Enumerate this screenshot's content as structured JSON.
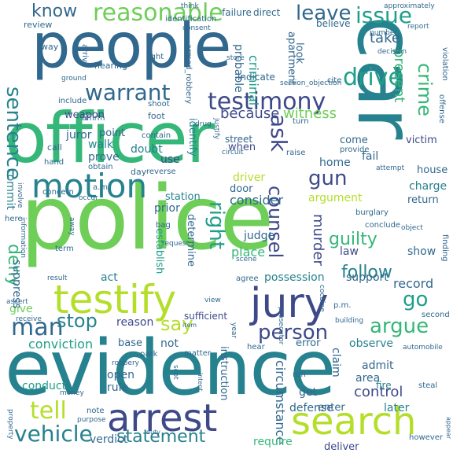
{
  "palette": [
    "#440154",
    "#482878",
    "#3e4989",
    "#31688e",
    "#26828e",
    "#1f9e89",
    "#35b779",
    "#6ece58",
    "#b5de2b",
    "#fde725"
  ],
  "words": [
    {
      "text": "police",
      "color": "#6ece58"
    },
    {
      "text": "evidence",
      "color": "#26828e"
    },
    {
      "text": "officer",
      "color": "#35b779"
    },
    {
      "text": "people",
      "color": "#31688e"
    },
    {
      "text": "car",
      "color": "#26828e"
    },
    {
      "text": "arrest",
      "color": "#3e4989"
    },
    {
      "text": "search",
      "color": "#b5de2b"
    },
    {
      "text": "jury",
      "color": "#3e4989"
    },
    {
      "text": "testify",
      "color": "#b5de2b"
    },
    {
      "text": "motion",
      "color": "#26828e"
    },
    {
      "text": "testimony",
      "color": "#3e4989"
    },
    {
      "text": "reasonable",
      "color": "#6ece58"
    },
    {
      "text": "warrant",
      "color": "#31688e"
    },
    {
      "text": "issue",
      "color": "#1f9e89"
    },
    {
      "text": "leave",
      "color": "#31688e"
    },
    {
      "text": "drive",
      "color": "#1f9e89"
    },
    {
      "text": "know",
      "color": "#31688e"
    },
    {
      "text": "sentence",
      "color": "#26828e"
    },
    {
      "text": "tell",
      "color": "#b5de2b"
    },
    {
      "text": "vehicle",
      "color": "#26828e"
    },
    {
      "text": "man",
      "color": "#31688e"
    },
    {
      "text": "stop",
      "color": "#26828e"
    },
    {
      "text": "say",
      "color": "#b5de2b"
    },
    {
      "text": "person",
      "color": "#3e4989"
    },
    {
      "text": "argue",
      "color": "#35b779"
    },
    {
      "text": "go",
      "color": "#1f9e89"
    },
    {
      "text": "gun",
      "color": "#3e4989"
    },
    {
      "text": "ask",
      "color": "#3e4989"
    },
    {
      "text": "crime",
      "color": "#35b779"
    },
    {
      "text": "right",
      "color": "#1f9e89"
    },
    {
      "text": "counsel",
      "color": "#3e4989"
    },
    {
      "text": "deny",
      "color": "#35b779"
    },
    {
      "text": "because",
      "color": "#3e4989"
    },
    {
      "text": "witness",
      "color": "#6ece58"
    },
    {
      "text": "follow",
      "color": "#26828e"
    },
    {
      "text": "guilty",
      "color": "#35b779"
    },
    {
      "text": "take",
      "color": "#31688e"
    },
    {
      "text": "present",
      "color": "#35b779"
    },
    {
      "text": "record",
      "color": "#31688e"
    },
    {
      "text": "statement",
      "color": "#26828e"
    },
    {
      "text": "conviction",
      "color": "#1f9e89"
    },
    {
      "text": "give",
      "color": "#6ece58"
    },
    {
      "text": "possession",
      "color": "#26828e"
    },
    {
      "text": "support",
      "color": "#31688e"
    },
    {
      "text": "murder",
      "color": "#3e4989"
    },
    {
      "text": "circumstance",
      "color": "#31688e"
    },
    {
      "text": "defense",
      "color": "#31688e"
    },
    {
      "text": "control",
      "color": "#3e4989"
    },
    {
      "text": "verdict",
      "color": "#31688e"
    },
    {
      "text": "require",
      "color": "#35b779"
    },
    {
      "text": "deliver",
      "color": "#3e4989"
    },
    {
      "text": "juror",
      "color": "#31688e"
    },
    {
      "text": "weapon",
      "color": "#3e4989"
    },
    {
      "text": "apartment",
      "color": "#31688e"
    },
    {
      "text": "criminal",
      "color": "#1f9e89"
    },
    {
      "text": "probable",
      "color": "#31688e"
    },
    {
      "text": "judge",
      "color": "#31688e"
    },
    {
      "text": "place",
      "color": "#35b779"
    },
    {
      "text": "consider",
      "color": "#31688e"
    },
    {
      "text": "argument",
      "color": "#b5de2b"
    },
    {
      "text": "law",
      "color": "#3e4989"
    },
    {
      "text": "show",
      "color": "#31688e"
    },
    {
      "text": "observe",
      "color": "#26828e"
    },
    {
      "text": "error",
      "color": "#31688e"
    },
    {
      "text": "claim",
      "color": "#31688e"
    },
    {
      "text": "admit",
      "color": "#31688e"
    },
    {
      "text": "area",
      "color": "#31688e"
    },
    {
      "text": "fire",
      "color": "#26828e"
    },
    {
      "text": "get",
      "color": "#31688e"
    },
    {
      "text": "enter",
      "color": "#31688e"
    },
    {
      "text": "later",
      "color": "#26828e"
    },
    {
      "text": "charge",
      "color": "#26828e"
    },
    {
      "text": "return",
      "color": "#31688e"
    },
    {
      "text": "house",
      "color": "#31688e"
    },
    {
      "text": "victim",
      "color": "#3e4989"
    },
    {
      "text": "fail",
      "color": "#31688e"
    },
    {
      "text": "come",
      "color": "#31688e"
    },
    {
      "text": "home",
      "color": "#31688e"
    },
    {
      "text": "when",
      "color": "#3e4989"
    },
    {
      "text": "walk",
      "color": "#26828e"
    },
    {
      "text": "prove",
      "color": "#31688e"
    },
    {
      "text": "use",
      "color": "#3e4989"
    },
    {
      "text": "doubt",
      "color": "#26828e"
    },
    {
      "text": "point",
      "color": "#31688e"
    },
    {
      "text": "identify",
      "color": "#26828e"
    },
    {
      "text": "station",
      "color": "#26828e"
    },
    {
      "text": "door",
      "color": "#31688e"
    },
    {
      "text": "driver",
      "color": "#b5de2b"
    },
    {
      "text": "prior",
      "color": "#31688e"
    },
    {
      "text": "establish",
      "color": "#1f9e89"
    },
    {
      "text": "determine",
      "color": "#31688e"
    },
    {
      "text": "act",
      "color": "#26828e"
    },
    {
      "text": "rule",
      "color": "#31688e"
    },
    {
      "text": "open",
      "color": "#31688e"
    },
    {
      "text": "base",
      "color": "#31688e"
    },
    {
      "text": "conduct",
      "color": "#1f9e89"
    },
    {
      "text": "suppress",
      "color": "#31688e"
    },
    {
      "text": "commit",
      "color": "#26828e"
    },
    {
      "text": "instruction",
      "color": "#31688e"
    },
    {
      "text": "reason",
      "color": "#3e4989"
    },
    {
      "text": "not",
      "color": "#31688e"
    },
    {
      "text": "sufficient",
      "color": "#3e4989"
    },
    {
      "text": "street",
      "color": "#31688e"
    },
    {
      "text": "indicate",
      "color": "#31688e"
    },
    {
      "text": "look",
      "color": "#31688e"
    },
    {
      "text": "believe",
      "color": "#31688e"
    },
    {
      "text": "failure",
      "color": "#31688e"
    },
    {
      "text": "direct",
      "color": "#31688e"
    },
    {
      "text": "review",
      "color": "#31688e"
    },
    {
      "text": "way",
      "color": "#31688e"
    },
    {
      "text": "arrive",
      "color": "#31688e"
    },
    {
      "text": "hearing",
      "color": "#31688e"
    },
    {
      "text": "include",
      "color": "#31688e"
    },
    {
      "text": "affirm",
      "color": "#31688e"
    },
    {
      "text": "call",
      "color": "#31688e"
    },
    {
      "text": "hand",
      "color": "#31688e"
    },
    {
      "text": "concern",
      "color": "#31688e"
    },
    {
      "text": "foot",
      "color": "#31688e"
    },
    {
      "text": "light",
      "color": "#31688e"
    },
    {
      "text": "shoot",
      "color": "#31688e"
    },
    {
      "text": "contain",
      "color": "#31688e"
    },
    {
      "text": "obtain",
      "color": "#31688e"
    },
    {
      "text": "day",
      "color": "#31688e"
    },
    {
      "text": "reverse",
      "color": "#31688e"
    },
    {
      "text": "a.m.",
      "color": "#31688e"
    },
    {
      "text": "p.m.",
      "color": "#31688e"
    },
    {
      "text": "bag",
      "color": "#31688e"
    },
    {
      "text": "term",
      "color": "#31688e"
    },
    {
      "text": "here",
      "color": "#31688e"
    },
    {
      "text": "assert",
      "color": "#31688e"
    },
    {
      "text": "receive",
      "color": "#31688e"
    },
    {
      "text": "agree",
      "color": "#31688e"
    },
    {
      "text": "view",
      "color": "#31688e"
    },
    {
      "text": "park",
      "color": "#31688e"
    },
    {
      "text": "matter",
      "color": "#31688e"
    },
    {
      "text": "robbery",
      "color": "#31688e"
    },
    {
      "text": "money",
      "color": "#31688e"
    },
    {
      "text": "note",
      "color": "#31688e"
    },
    {
      "text": "purpose",
      "color": "#31688e"
    },
    {
      "text": "hear",
      "color": "#31688e"
    },
    {
      "text": "second",
      "color": "#31688e"
    },
    {
      "text": "building",
      "color": "#31688e"
    },
    {
      "text": "steal",
      "color": "#31688e"
    },
    {
      "text": "however",
      "color": "#31688e"
    },
    {
      "text": "automobile",
      "color": "#31688e"
    },
    {
      "text": "finding",
      "color": "#31688e"
    },
    {
      "text": "object",
      "color": "#31688e"
    },
    {
      "text": "conclude",
      "color": "#31688e"
    },
    {
      "text": "burglary",
      "color": "#31688e"
    },
    {
      "text": "attempt",
      "color": "#31688e"
    },
    {
      "text": "provide",
      "color": "#31688e"
    },
    {
      "text": "raise",
      "color": "#31688e"
    },
    {
      "text": "offense",
      "color": "#31688e"
    },
    {
      "text": "violation",
      "color": "#31688e"
    },
    {
      "text": "turn",
      "color": "#31688e"
    },
    {
      "text": "cite",
      "color": "#31688e"
    },
    {
      "text": "section_objection",
      "color": "#31688e"
    },
    {
      "text": "number",
      "color": "#31688e"
    },
    {
      "text": "decision",
      "color": "#31688e"
    },
    {
      "text": "approximately",
      "color": "#31688e"
    },
    {
      "text": "think",
      "color": "#31688e"
    },
    {
      "text": "identification",
      "color": "#31688e"
    },
    {
      "text": "consent",
      "color": "#31688e"
    },
    {
      "text": "armed_robbery",
      "color": "#31688e"
    },
    {
      "text": "ground",
      "color": "#31688e"
    },
    {
      "text": "drug",
      "color": "#31688e"
    },
    {
      "text": "justify",
      "color": "#31688e"
    },
    {
      "text": "circuit",
      "color": "#31688e"
    },
    {
      "text": "store",
      "color": "#31688e"
    },
    {
      "text": "request",
      "color": "#31688e"
    },
    {
      "text": "scene",
      "color": "#31688e"
    },
    {
      "text": "cocaine",
      "color": "#31688e"
    },
    {
      "text": "prosecutor",
      "color": "#31688e"
    },
    {
      "text": "run",
      "color": "#31688e"
    },
    {
      "text": "property",
      "color": "#31688e"
    },
    {
      "text": "occur",
      "color": "#31688e"
    },
    {
      "text": "involve",
      "color": "#31688e"
    },
    {
      "text": "information",
      "color": "#31688e"
    },
    {
      "text": "report",
      "color": "#31688e"
    },
    {
      "text": "item",
      "color": "#31688e"
    },
    {
      "text": "intent",
      "color": "#31688e"
    },
    {
      "text": "duty",
      "color": "#31688e"
    },
    {
      "text": "year",
      "color": "#31688e"
    },
    {
      "text": "away",
      "color": "#31688e"
    },
    {
      "text": "result",
      "color": "#31688e"
    },
    {
      "text": "scot",
      "color": "#31688e"
    },
    {
      "text": "appear",
      "color": "#31688e"
    }
  ]
}
